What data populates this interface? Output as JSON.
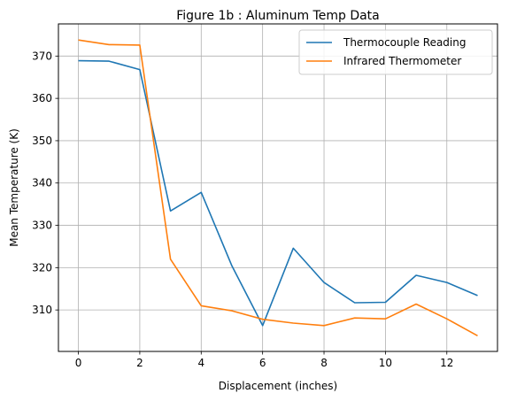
{
  "chart_data": {
    "type": "line",
    "title": "Figure 1b : Aluminum Temp Data",
    "xlabel": "Displacement (inches)",
    "ylabel": "Mean Temperature (K)",
    "x": [
      0,
      1,
      2,
      3,
      4,
      5,
      6,
      7,
      8,
      9,
      10,
      11,
      12,
      13
    ],
    "xlim": [
      -0.65,
      13.65
    ],
    "ylim": [
      300.2,
      377.6
    ],
    "xticks": [
      0,
      2,
      4,
      6,
      8,
      10,
      12
    ],
    "yticks": [
      310,
      320,
      330,
      340,
      350,
      360,
      370
    ],
    "grid": true,
    "legend_position": "top-right",
    "series": [
      {
        "name": "Thermocouple Reading",
        "color": "#1f77b4",
        "values": [
          368.9,
          368.8,
          366.8,
          333.4,
          337.8,
          320.4,
          306.3,
          324.6,
          316.5,
          311.7,
          311.8,
          318.2,
          316.5,
          313.4
        ]
      },
      {
        "name": "Infrared Thermometer",
        "color": "#ff7f0e",
        "values": [
          373.8,
          372.7,
          372.6,
          322.0,
          311.0,
          309.8,
          307.8,
          306.9,
          306.3,
          308.1,
          307.9,
          311.4,
          307.9,
          303.9
        ]
      }
    ]
  }
}
